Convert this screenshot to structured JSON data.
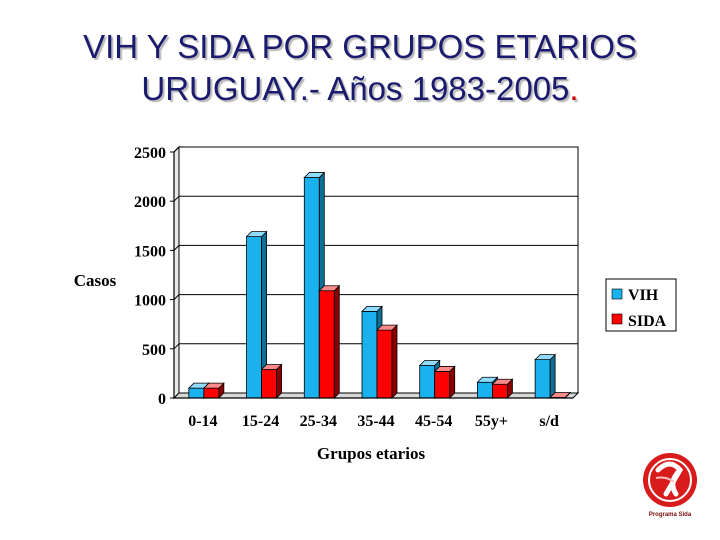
{
  "title": {
    "line1": "VIH Y SIDA POR GRUPOS ETARIOS",
    "line2": "URUGUAY.- Años 1983-2005",
    "period": "."
  },
  "colors": {
    "vih": "#1ab2ee",
    "sida": "#ff0000",
    "title": "#1a1a6e"
  },
  "logo": {
    "text": "Programa Sida",
    "icon": "aids-ribbon-logo-icon"
  },
  "chart_data": {
    "type": "bar",
    "categories": [
      "0-14",
      "15-24",
      "25-34",
      "35-44",
      "45-54",
      "55y+",
      "s/d"
    ],
    "series": [
      {
        "name": "VIH",
        "values": [
          100,
          1640,
          2240,
          880,
          330,
          160,
          390
        ]
      },
      {
        "name": "SIDA",
        "values": [
          100,
          290,
          1090,
          690,
          270,
          140,
          5
        ]
      }
    ],
    "xlabel": "Grupos etarios",
    "ylabel": "Casos",
    "ylim": [
      0,
      2500
    ],
    "yticks": [
      0,
      500,
      1000,
      1500,
      2000,
      2500
    ],
    "grid": true,
    "legend": "right"
  }
}
